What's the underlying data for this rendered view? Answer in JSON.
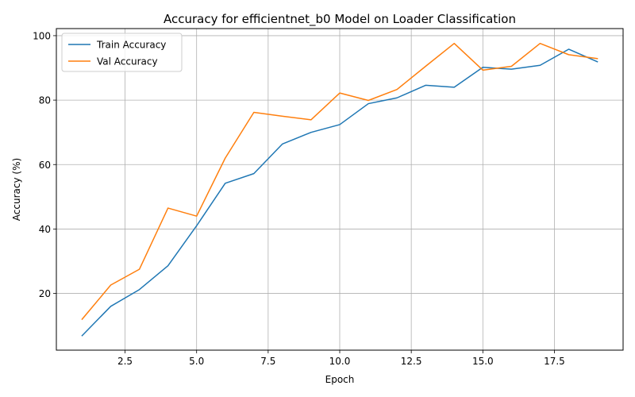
{
  "chart_data": {
    "type": "line",
    "title": "Accuracy for efficientnet_b0 Model on Loader Classification",
    "xlabel": "Epoch",
    "ylabel": "Accuracy (%)",
    "xlim": [
      0.1,
      19.9
    ],
    "ylim": [
      2.4,
      102.2
    ],
    "xticks": [
      2.5,
      5.0,
      7.5,
      10.0,
      12.5,
      15.0,
      17.5
    ],
    "xtick_labels": [
      "2.5",
      "5.0",
      "7.5",
      "10.0",
      "12.5",
      "15.0",
      "17.5"
    ],
    "yticks": [
      20,
      40,
      60,
      80,
      100
    ],
    "ytick_labels": [
      "20",
      "40",
      "60",
      "80",
      "100"
    ],
    "grid": true,
    "legend_position": "top-left",
    "x": [
      1,
      2,
      3,
      4,
      5,
      6,
      7,
      8,
      9,
      10,
      11,
      12,
      13,
      14,
      15,
      16,
      17,
      18,
      19
    ],
    "series": [
      {
        "name": "Train Accuracy",
        "color": "#1f77b4",
        "values": [
          6.9,
          16.0,
          21.2,
          28.6,
          41.0,
          54.2,
          57.2,
          66.4,
          70.0,
          72.4,
          78.9,
          80.7,
          84.6,
          84.0,
          90.2,
          89.6,
          90.8,
          95.8,
          91.9
        ]
      },
      {
        "name": "Val Accuracy",
        "color": "#ff7f0e",
        "values": [
          12.0,
          22.6,
          27.5,
          46.5,
          44.0,
          62.0,
          76.2,
          75.0,
          73.9,
          82.2,
          79.9,
          83.3,
          90.5,
          97.6,
          89.3,
          90.5,
          97.6,
          94.1,
          92.9
        ]
      }
    ]
  }
}
